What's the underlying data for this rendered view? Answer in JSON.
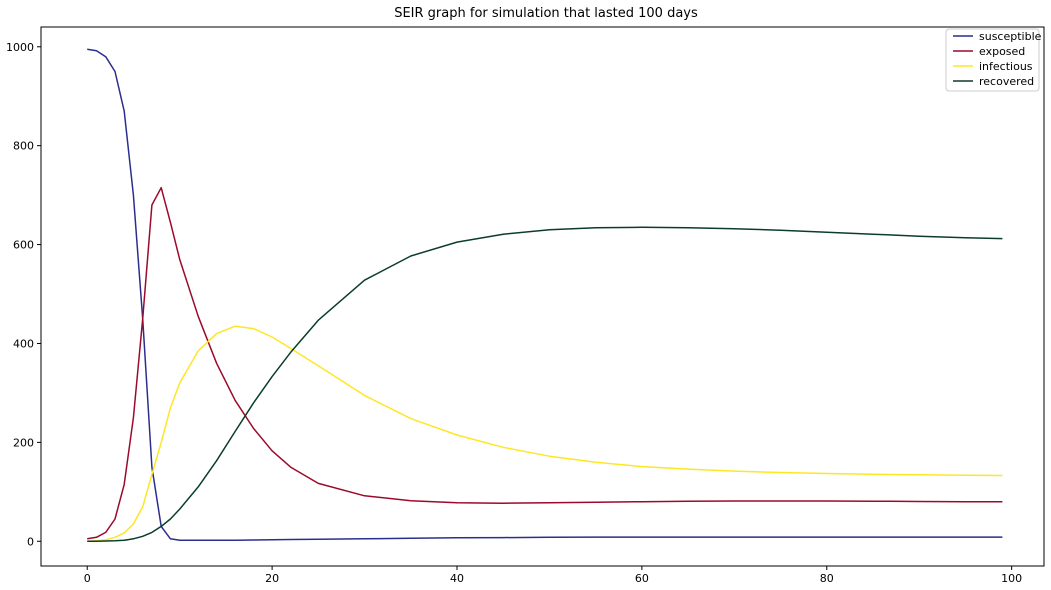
{
  "chart_data": {
    "type": "line",
    "title": "SEIR graph for simulation that lasted 100 days",
    "xlabel": "",
    "ylabel": "",
    "xlim": [
      -5,
      103.5
    ],
    "ylim": [
      -50,
      1040
    ],
    "xticks": [
      0,
      20,
      40,
      60,
      80,
      100
    ],
    "yticks": [
      0,
      200,
      400,
      600,
      800,
      1000
    ],
    "grid": false,
    "legend_position": "top-right",
    "x": [
      0,
      1,
      2,
      3,
      4,
      5,
      6,
      7,
      8,
      9,
      10,
      12,
      14,
      16,
      18,
      20,
      22,
      25,
      30,
      35,
      40,
      45,
      50,
      55,
      60,
      65,
      70,
      75,
      80,
      85,
      90,
      95,
      99
    ],
    "series": [
      {
        "name": "susceptible",
        "color": "#2b2f8c",
        "values": [
          995,
          992,
          980,
          950,
          870,
          700,
          450,
          150,
          30,
          5,
          2,
          2,
          2,
          2,
          2.5,
          3,
          3.5,
          4,
          5,
          6,
          7,
          7.5,
          8,
          8.5,
          8.5,
          8.5,
          8.5,
          8.5,
          8.5,
          8.5,
          8.5,
          8.5,
          8.5
        ]
      },
      {
        "name": "exposed",
        "color": "#9b0a2a",
        "values": [
          5,
          8,
          18,
          45,
          115,
          250,
          450,
          680,
          715,
          645,
          570,
          455,
          360,
          285,
          228,
          183,
          150,
          117,
          92,
          82,
          78,
          77,
          78,
          79,
          80,
          81,
          81.5,
          81.5,
          81.5,
          81,
          80.5,
          80,
          80
        ]
      },
      {
        "name": "infectious",
        "color": "#fde725",
        "values": [
          0,
          1,
          3,
          8,
          17,
          35,
          70,
          135,
          200,
          270,
          320,
          385,
          420,
          435,
          430,
          413,
          390,
          355,
          295,
          248,
          215,
          190,
          172,
          160,
          151,
          146,
          142,
          139,
          137,
          135.5,
          134.5,
          133.5,
          133
        ]
      },
      {
        "name": "recovered",
        "color": "#0b3d2a",
        "values": [
          0,
          0,
          0.5,
          1,
          2,
          5,
          10,
          18,
          30,
          45,
          65,
          110,
          163,
          222,
          280,
          333,
          382,
          447,
          528,
          577,
          605,
          621,
          630,
          634,
          635,
          634,
          632,
          629,
          625,
          621,
          617,
          614,
          612
        ]
      }
    ]
  }
}
